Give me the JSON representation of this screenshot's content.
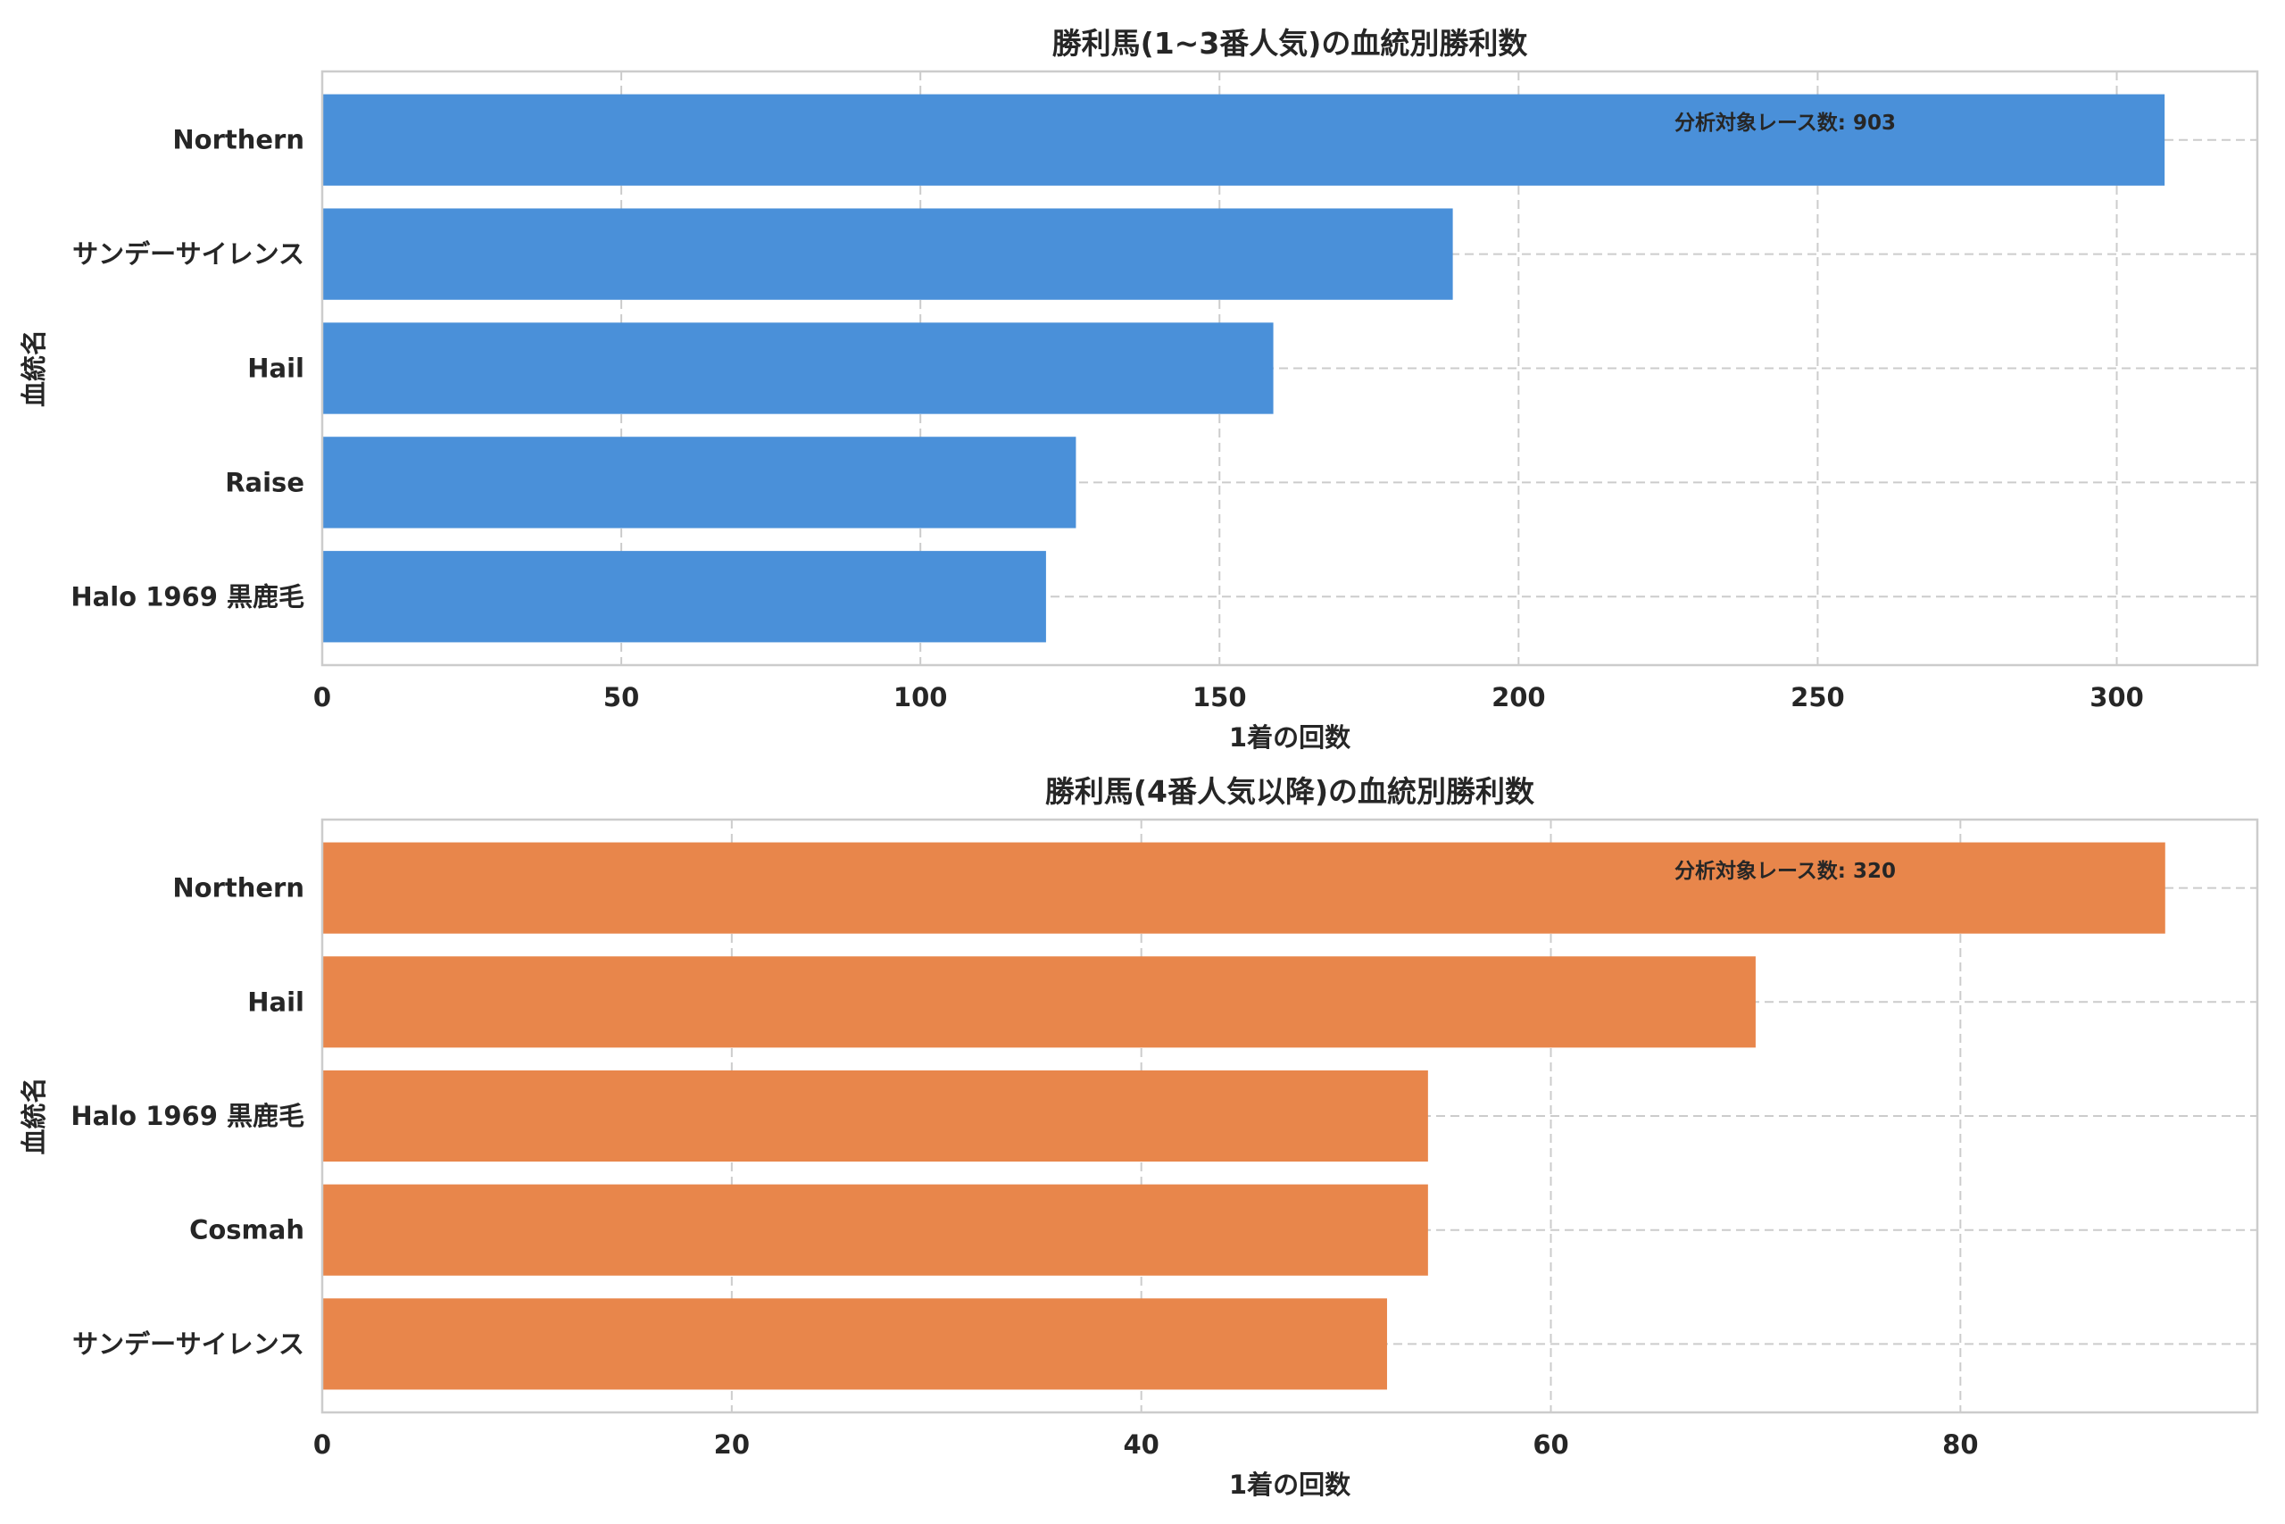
{
  "chart_data": [
    {
      "type": "bar",
      "orientation": "horizontal",
      "title": "勝利馬(1~3番人気)の血統別勝利数",
      "xlabel": "1着の回数",
      "ylabel": "血統名",
      "categories": [
        "Halo 1969 黒鹿毛",
        "Raise",
        "Hail",
        "サンデーサイレンス",
        "Northern"
      ],
      "values": [
        121,
        126,
        159,
        189,
        308
      ],
      "xlim": [
        0,
        323.5
      ],
      "xticks": [
        0,
        50,
        100,
        150,
        200,
        250,
        300
      ],
      "annotation": "分析対象レース数: 903",
      "color": "#4a90d9",
      "grid": true
    },
    {
      "type": "bar",
      "orientation": "horizontal",
      "title": "勝利馬(4番人気以降)の血統別勝利数",
      "xlabel": "1着の回数",
      "ylabel": "血統名",
      "categories": [
        "サンデーサイレンス",
        "Cosmah",
        "Halo 1969 黒鹿毛",
        "Hail",
        "Northern"
      ],
      "values": [
        52,
        54,
        54,
        70,
        90
      ],
      "xlim": [
        0,
        94.5
      ],
      "xticks": [
        0,
        20,
        40,
        60,
        80
      ],
      "annotation": "分析対象レース数: 320",
      "color": "#e8864b",
      "grid": true
    }
  ]
}
